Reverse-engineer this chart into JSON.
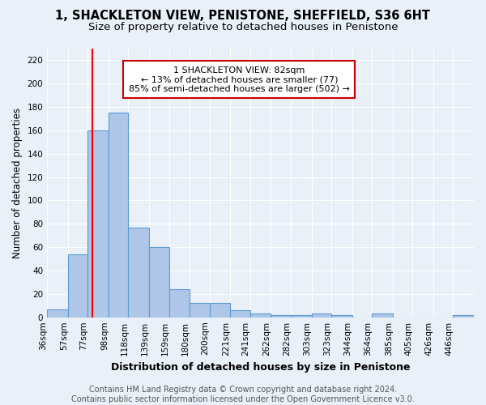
{
  "title": "1, SHACKLETON VIEW, PENISTONE, SHEFFIELD, S36 6HT",
  "subtitle": "Size of property relative to detached houses in Penistone",
  "xlabel": "Distribution of detached houses by size in Penistone",
  "ylabel": "Number of detached properties",
  "bar_labels": [
    "36sqm",
    "57sqm",
    "77sqm",
    "98sqm",
    "118sqm",
    "139sqm",
    "159sqm",
    "180sqm",
    "200sqm",
    "221sqm",
    "241sqm",
    "262sqm",
    "282sqm",
    "303sqm",
    "323sqm",
    "344sqm",
    "364sqm",
    "385sqm",
    "405sqm",
    "426sqm",
    "446sqm"
  ],
  "bar_values": [
    7,
    54,
    160,
    175,
    77,
    60,
    24,
    12,
    12,
    6,
    3,
    2,
    2,
    3,
    2,
    0,
    3,
    0,
    0,
    0,
    2
  ],
  "bar_color": "#aec6e8",
  "bar_edge_color": "#5b9bd5",
  "red_line_x": 82,
  "bin_edges": [
    36,
    57,
    77,
    98,
    118,
    139,
    159,
    180,
    200,
    221,
    241,
    262,
    282,
    303,
    323,
    344,
    364,
    385,
    405,
    426,
    446,
    467
  ],
  "annotation_text": "1 SHACKLETON VIEW: 82sqm\n← 13% of detached houses are smaller (77)\n85% of semi-detached houses are larger (502) →",
  "annotation_box_color": "#ffffff",
  "annotation_box_edge": "#cc0000",
  "footer_text": "Contains HM Land Registry data © Crown copyright and database right 2024.\nContains public sector information licensed under the Open Government Licence v3.0.",
  "ylim": [
    0,
    230
  ],
  "yticks": [
    0,
    20,
    40,
    60,
    80,
    100,
    120,
    140,
    160,
    180,
    200,
    220
  ],
  "bg_color": "#eaf0f8",
  "grid_color": "#ffffff",
  "title_fontsize": 10.5,
  "subtitle_fontsize": 9.5,
  "ylabel_fontsize": 8.5,
  "xlabel_fontsize": 9,
  "tick_fontsize": 7.5,
  "footer_fontsize": 7
}
